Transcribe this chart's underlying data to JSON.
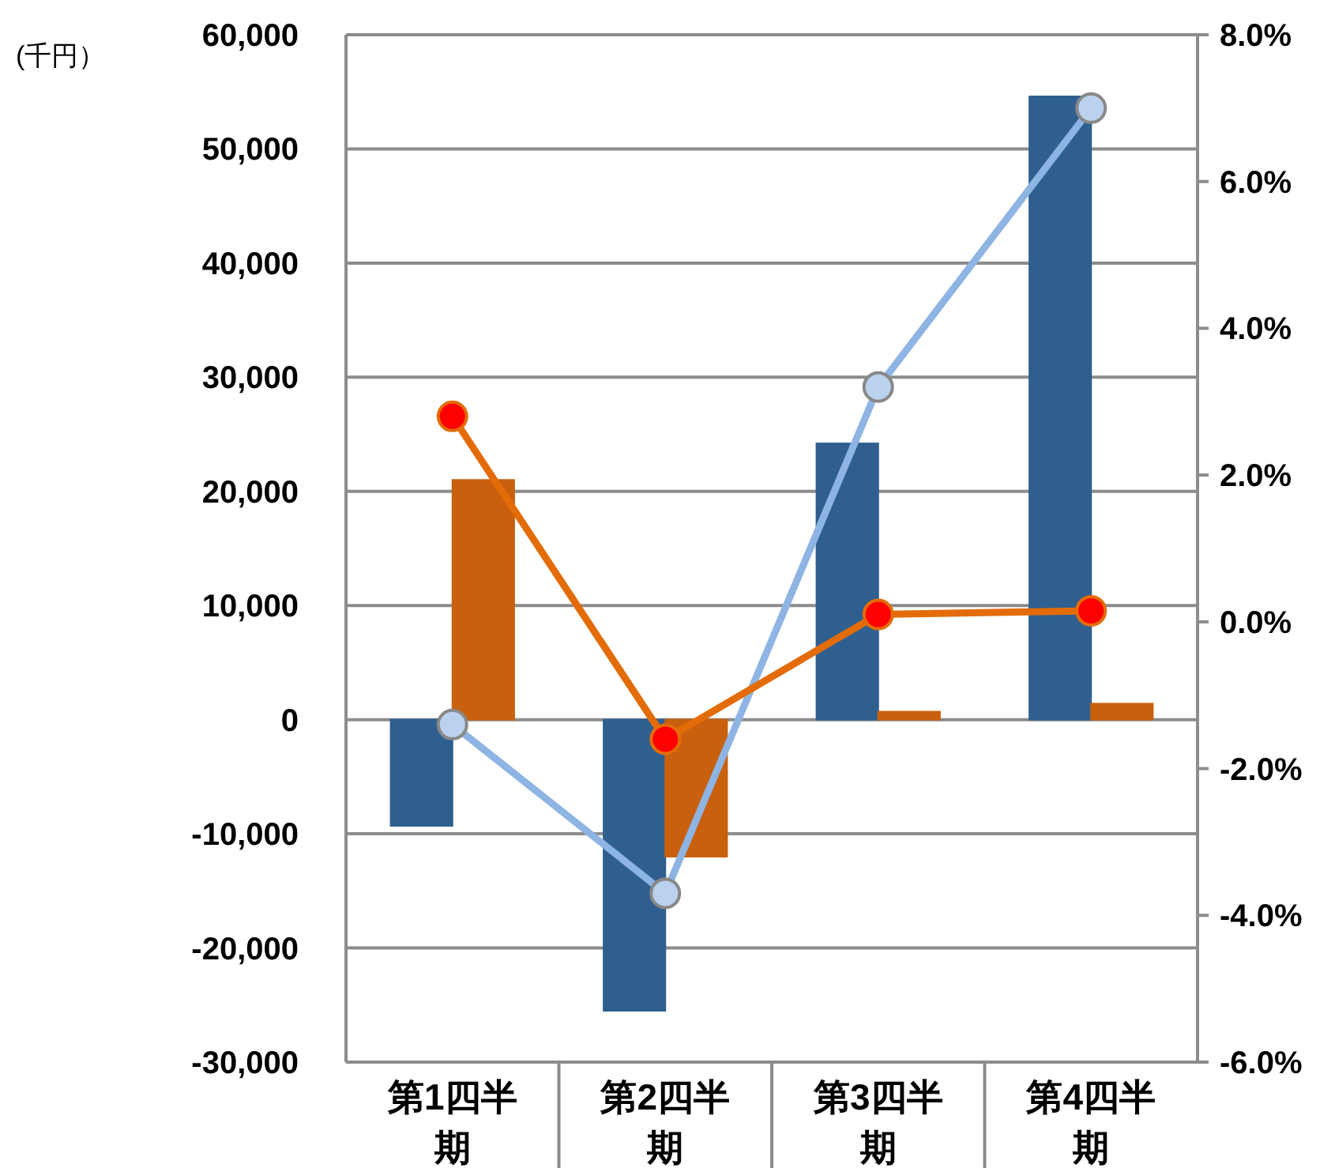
{
  "chart_data": {
    "type": "bar",
    "ylabel": "(千円）",
    "categories": [
      "第1四半期",
      "第2四半期",
      "第3四半期",
      "第4四半期"
    ],
    "series": [
      {
        "color": "#2f5f8f",
        "values": [
          -9300,
          -25500,
          24200,
          54600
        ]
      },
      {
        "color": "#c8600e",
        "values": [
          21000,
          -12000,
          700,
          1400
        ]
      },
      {
        "type": "line",
        "axis": "y2",
        "color": "#8eb4e3",
        "marker": "circle",
        "values": [
          -1.4,
          -3.7,
          3.2,
          7.0
        ]
      },
      {
        "type": "line",
        "axis": "y2",
        "color": "#e36c09",
        "marker": "circle",
        "values": [
          2.8,
          -1.6,
          0.1,
          0.15
        ]
      }
    ],
    "ylim": [
      -30000,
      60000
    ],
    "yticks": [
      {
        "value": -30000,
        "label": "-30,000"
      },
      {
        "value": -20000,
        "label": "-20,000"
      },
      {
        "value": -10000,
        "label": "-10,000"
      },
      0,
      {
        "value": 10000,
        "label": "10,000"
      },
      {
        "value": 20000,
        "label": "20,000"
      },
      {
        "value": 30000,
        "label": "30,000"
      },
      {
        "value": 40000,
        "label": "40,000"
      },
      {
        "value": 50000,
        "label": "50,000"
      },
      {
        "value": 60000,
        "label": "60,000"
      }
    ],
    "y2lim": [
      -6,
      8
    ],
    "y2ticks": [
      {
        "value": -6,
        "label": "-6.0%"
      },
      {
        "value": -4,
        "label": "-4.0%"
      },
      {
        "value": -2,
        "label": "-2.0%"
      },
      {
        "value": 0,
        "label": "0.0%"
      },
      {
        "value": 2,
        "label": "2.0%"
      },
      {
        "value": 4,
        "label": "4.0%"
      },
      {
        "value": 6,
        "label": "6.0%"
      },
      {
        "value": 8,
        "label": "8.0%"
      }
    ],
    "grid": "y"
  }
}
